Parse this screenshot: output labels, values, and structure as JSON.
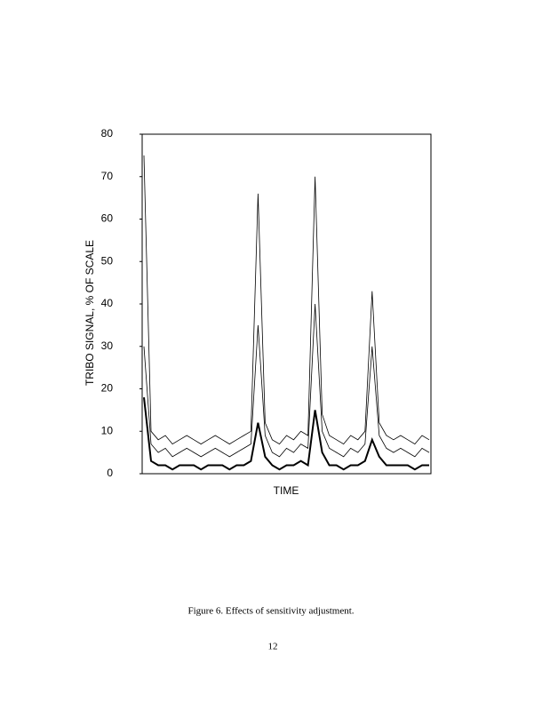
{
  "chart_data": {
    "type": "line",
    "xlabel": "TIME",
    "ylabel": "TRIBO SIGNAL, % OF SCALE",
    "ylim": [
      0,
      80
    ],
    "yticks": [
      0,
      10,
      20,
      30,
      40,
      50,
      60,
      70,
      80
    ],
    "grid": false,
    "series": [
      {
        "color": "#000000",
        "values": [
          75,
          10,
          8,
          9,
          7,
          8,
          9,
          8,
          7,
          8,
          9,
          8,
          7,
          8,
          9,
          10,
          66,
          12,
          8,
          7,
          9,
          8,
          10,
          9,
          70,
          14,
          9,
          8,
          7,
          9,
          8,
          10,
          43,
          12,
          9,
          8,
          9,
          8,
          7,
          9,
          8
        ]
      },
      {
        "color": "#000000",
        "values": [
          30,
          7,
          5,
          6,
          4,
          5,
          6,
          5,
          4,
          5,
          6,
          5,
          4,
          5,
          6,
          7,
          35,
          9,
          5,
          4,
          6,
          5,
          7,
          6,
          40,
          10,
          6,
          5,
          4,
          6,
          5,
          7,
          30,
          9,
          6,
          5,
          6,
          5,
          4,
          6,
          5
        ]
      },
      {
        "color": "#000000",
        "values": [
          18,
          3,
          2,
          2,
          1,
          2,
          2,
          2,
          1,
          2,
          2,
          2,
          1,
          2,
          2,
          3,
          12,
          4,
          2,
          1,
          2,
          2,
          3,
          2,
          15,
          5,
          2,
          2,
          1,
          2,
          2,
          3,
          8,
          4,
          2,
          2,
          2,
          2,
          1,
          2,
          2
        ]
      }
    ]
  },
  "caption": "Figure 6.  Effects of sensitivity adjustment.",
  "page_number": "12"
}
